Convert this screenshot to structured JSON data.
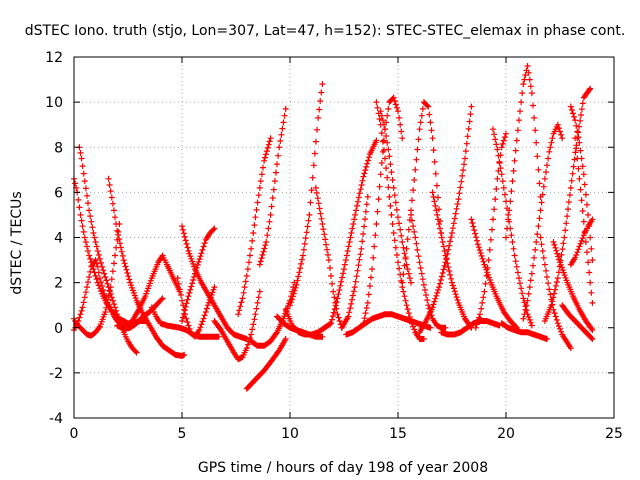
{
  "chart_data": {
    "type": "scatter",
    "title": "dSTEC Iono. truth (stjo, Lon=307, Lat=47, h=152): STEC-STEC_elemax in phase cont.",
    "xlabel": "GPS time / hours of day 198 of year 2008",
    "ylabel": "dSTEC  / TECUs",
    "xlim": [
      0,
      25
    ],
    "ylim": [
      -4,
      12
    ],
    "x_ticks": [
      0,
      5,
      10,
      15,
      20,
      25
    ],
    "y_ticks": [
      -4,
      -2,
      0,
      2,
      4,
      6,
      8,
      10,
      12
    ],
    "grid": true,
    "marker": "+",
    "color": "#ff0000",
    "arcs": [
      {
        "x": [
          0.0,
          0.1,
          0.25,
          0.4,
          0.6,
          0.8,
          1.0,
          1.2,
          1.45,
          1.7,
          1.9,
          2.1
        ],
        "y": [
          0.4,
          0.2,
          0.05,
          -0.1,
          -0.3,
          -0.35,
          -0.2,
          0.05,
          0.7,
          1.8,
          3.2,
          4.6
        ]
      },
      {
        "x": [
          0.0,
          0.15,
          0.3,
          0.5,
          0.7,
          0.9,
          1.1,
          1.3,
          1.5,
          1.7,
          1.9,
          2.1,
          2.3,
          2.5,
          2.7,
          2.9,
          3.1,
          3.3
        ],
        "y": [
          6.6,
          6.0,
          5.0,
          4.0,
          3.2,
          2.6,
          2.0,
          1.5,
          1.1,
          0.8,
          0.6,
          0.4,
          0.3,
          0.2,
          0.2,
          0.25,
          0.3,
          0.3
        ]
      },
      {
        "x": [
          0.25,
          0.35,
          0.5,
          0.7,
          0.9,
          1.1,
          1.3,
          1.5,
          1.7,
          1.9,
          2.1,
          2.3,
          2.5,
          2.7,
          2.9
        ],
        "y": [
          8.0,
          7.5,
          6.5,
          5.2,
          4.2,
          3.4,
          2.7,
          2.1,
          1.5,
          0.9,
          0.3,
          -0.2,
          -0.6,
          -0.9,
          -1.1
        ]
      },
      {
        "x": [
          0.0,
          0.2,
          0.4,
          0.6,
          0.8,
          1.0,
          1.1,
          1.2,
          1.4,
          1.6,
          1.8,
          2.0,
          2.2,
          2.4
        ],
        "y": [
          -0.1,
          0.3,
          0.9,
          1.8,
          2.7,
          3.0,
          2.7,
          2.2,
          1.5,
          1.0,
          0.6,
          0.3,
          0.1,
          0.0
        ]
      },
      {
        "x": [
          1.6,
          1.8,
          2.0,
          2.3,
          2.6,
          2.9,
          3.2,
          3.5,
          3.8,
          4.1,
          4.4,
          4.7,
          5.0,
          5.1
        ],
        "y": [
          6.6,
          5.5,
          4.3,
          3.0,
          2.0,
          1.2,
          0.6,
          0.1,
          -0.4,
          -0.8,
          -1.0,
          -1.2,
          -1.25,
          -1.2
        ]
      },
      {
        "x": [
          2.0,
          2.3,
          2.6,
          2.9,
          3.2,
          3.5,
          3.8,
          4.0,
          4.1
        ],
        "y": [
          0.1,
          -0.05,
          0.0,
          0.2,
          0.5,
          0.7,
          1.0,
          1.2,
          1.3
        ]
      },
      {
        "x": [
          2.4,
          2.7,
          3.0,
          3.3,
          3.6,
          3.9,
          4.1,
          4.3,
          4.6,
          4.9
        ],
        "y": [
          0.0,
          0.3,
          0.8,
          1.4,
          2.2,
          2.9,
          3.2,
          2.8,
          2.2,
          1.6
        ]
      },
      {
        "x": [
          3.6,
          3.8,
          4.0,
          4.3,
          4.6,
          4.9,
          5.2,
          5.5,
          5.8,
          6.1,
          6.4,
          6.7
        ],
        "y": [
          0.9,
          0.5,
          0.2,
          0.1,
          0.05,
          0.0,
          -0.1,
          -0.3,
          -0.4,
          -0.4,
          -0.4,
          -0.4
        ]
      },
      {
        "x": [
          4.8,
          5.0,
          5.2,
          5.4,
          5.6,
          5.8,
          6.0,
          6.2,
          6.5
        ],
        "y": [
          2.2,
          1.2,
          0.4,
          -0.2,
          -0.4,
          -0.1,
          0.4,
          1.0,
          1.8
        ]
      },
      {
        "x": [
          5.0,
          5.3,
          5.6,
          5.9,
          6.2,
          6.5,
          6.8,
          7.1,
          7.4,
          7.7,
          8.0
        ],
        "y": [
          4.5,
          3.4,
          2.6,
          2.0,
          1.5,
          1.0,
          0.5,
          0.0,
          -0.3,
          -0.4,
          -0.5
        ]
      },
      {
        "x": [
          5.0,
          5.3,
          5.6,
          5.9,
          6.1,
          6.3,
          6.5
        ],
        "y": [
          0.3,
          1.4,
          2.4,
          3.3,
          3.9,
          4.2,
          4.4
        ]
      },
      {
        "x": [
          6.5,
          6.8,
          7.1,
          7.4,
          7.6,
          7.8,
          8.0,
          8.2,
          8.4,
          8.6
        ],
        "y": [
          0.3,
          -0.1,
          -0.6,
          -1.1,
          -1.4,
          -1.3,
          -0.9,
          -0.3,
          0.6,
          1.6
        ]
      },
      {
        "x": [
          7.6,
          7.8,
          8.0,
          8.2,
          8.4,
          8.6,
          8.8,
          9.1
        ],
        "y": [
          0.6,
          1.3,
          2.3,
          3.5,
          4.9,
          6.2,
          7.4,
          8.4
        ]
      },
      {
        "x": [
          8.0,
          8.4,
          8.8,
          9.2,
          9.5,
          9.8
        ],
        "y": [
          -2.7,
          -2.3,
          -1.9,
          -1.4,
          -1.0,
          -0.5
        ]
      },
      {
        "x": [
          8.2,
          8.5,
          8.8,
          9.1,
          9.4,
          9.7,
          10.0,
          10.2
        ],
        "y": [
          -0.6,
          -0.8,
          -0.8,
          -0.6,
          -0.2,
          0.4,
          1.2,
          2.0
        ]
      },
      {
        "x": [
          8.6,
          8.9,
          9.1,
          9.3,
          9.5,
          9.7,
          9.8
        ],
        "y": [
          2.8,
          3.8,
          5.0,
          6.5,
          8.0,
          9.1,
          9.7
        ]
      },
      {
        "x": [
          9.4,
          9.7,
          10.0,
          10.3,
          10.6,
          10.9,
          11.2,
          11.5
        ],
        "y": [
          0.5,
          0.2,
          0.0,
          -0.1,
          -0.2,
          -0.3,
          -0.4,
          -0.4
        ]
      },
      {
        "x": [
          9.8,
          10.1,
          10.4,
          10.7,
          11.0,
          11.3,
          11.6,
          11.9
        ],
        "y": [
          0.8,
          0.1,
          -0.2,
          -0.3,
          -0.3,
          -0.2,
          0.0,
          0.2
        ]
      },
      {
        "x": [
          10.0,
          10.3,
          10.6,
          10.9,
          11.1,
          11.3,
          11.5
        ],
        "y": [
          1.0,
          1.9,
          3.2,
          5.0,
          7.2,
          9.3,
          10.8
        ]
      },
      {
        "x": [
          11.2,
          11.5,
          11.8,
          12.0,
          12.2,
          12.4
        ],
        "y": [
          6.2,
          4.6,
          3.0,
          1.6,
          0.6,
          0.0
        ]
      },
      {
        "x": [
          11.9,
          12.2,
          12.5,
          12.8,
          13.1,
          13.4,
          13.7,
          14.0
        ],
        "y": [
          0.2,
          1.3,
          2.6,
          4.0,
          5.4,
          6.7,
          7.7,
          8.3
        ]
      },
      {
        "x": [
          12.4,
          12.7,
          13.0,
          13.3,
          13.6
        ],
        "y": [
          0.0,
          0.5,
          1.8,
          3.5,
          5.8
        ]
      },
      {
        "x": [
          12.6,
          12.9,
          13.2,
          13.5,
          13.8,
          14.1,
          14.4,
          14.7,
          15.0,
          15.3,
          15.6,
          15.9,
          16.2,
          16.5
        ],
        "y": [
          -0.3,
          -0.2,
          0.0,
          0.2,
          0.4,
          0.5,
          0.6,
          0.6,
          0.5,
          0.4,
          0.3,
          0.2,
          0.1,
          0.0
        ]
      },
      {
        "x": [
          13.4,
          13.6,
          13.8,
          14.0,
          14.2,
          14.4,
          14.6,
          14.8,
          15.0,
          15.2
        ],
        "y": [
          0.2,
          1.1,
          2.6,
          4.6,
          6.8,
          8.8,
          10.0,
          10.2,
          9.6,
          8.4
        ]
      },
      {
        "x": [
          14.0,
          14.2,
          14.4,
          14.6,
          14.8,
          15.0,
          15.2,
          15.4,
          15.6,
          15.8,
          16.0,
          16.2
        ],
        "y": [
          10.0,
          9.0,
          7.5,
          5.8,
          4.2,
          2.9,
          1.8,
          1.0,
          0.3,
          -0.2,
          -0.5,
          -0.5
        ]
      },
      {
        "x": [
          14.2,
          14.4,
          14.6,
          14.8,
          15.0,
          15.2,
          15.4,
          15.6
        ],
        "y": [
          9.6,
          8.8,
          7.6,
          6.2,
          4.9,
          3.8,
          2.8,
          2.0
        ]
      },
      {
        "x": [
          15.2,
          15.4,
          15.6,
          15.8,
          16.0,
          16.2,
          16.4,
          16.6,
          16.8,
          17.0
        ],
        "y": [
          2.0,
          3.5,
          5.2,
          7.0,
          8.8,
          10.0,
          9.8,
          8.4,
          6.3,
          4.2
        ]
      },
      {
        "x": [
          15.6,
          15.8,
          16.0,
          16.2,
          16.4,
          16.6,
          16.8,
          17.0,
          17.2
        ],
        "y": [
          5.0,
          4.0,
          2.9,
          1.9,
          1.0,
          0.4,
          0.1,
          0.0,
          0.0
        ]
      },
      {
        "x": [
          16.0,
          16.3,
          16.6,
          16.9,
          17.2,
          17.5,
          17.8,
          18.1,
          18.4
        ],
        "y": [
          -0.2,
          0.3,
          0.9,
          1.8,
          2.9,
          4.2,
          5.7,
          7.5,
          9.8
        ]
      },
      {
        "x": [
          16.6,
          16.9,
          17.2,
          17.5,
          17.8,
          18.1,
          18.4
        ],
        "y": [
          6.0,
          4.6,
          3.2,
          2.0,
          1.1,
          0.4,
          0.0
        ]
      },
      {
        "x": [
          17.0,
          17.3,
          17.6,
          17.9,
          18.2,
          18.5,
          18.8,
          19.1,
          19.4,
          19.7
        ],
        "y": [
          -0.2,
          -0.3,
          -0.3,
          -0.2,
          0.0,
          0.2,
          0.3,
          0.3,
          0.2,
          0.1
        ]
      },
      {
        "x": [
          18.4,
          18.7,
          19.0,
          19.3,
          19.6,
          19.9,
          20.2,
          20.5
        ],
        "y": [
          4.8,
          3.7,
          2.8,
          2.0,
          1.3,
          0.7,
          0.3,
          0.0
        ]
      },
      {
        "x": [
          18.6,
          18.8,
          19.0,
          19.2,
          19.4,
          19.6,
          19.8,
          20.0
        ],
        "y": [
          0.0,
          0.6,
          1.6,
          3.0,
          4.8,
          6.6,
          8.0,
          8.6
        ]
      },
      {
        "x": [
          19.4,
          19.6,
          19.8,
          20.0,
          20.2,
          20.4,
          20.6,
          20.8,
          21.0,
          21.2
        ],
        "y": [
          8.8,
          7.9,
          6.8,
          5.6,
          4.4,
          3.2,
          2.2,
          1.3,
          0.6,
          0.1
        ]
      },
      {
        "x": [
          19.8,
          20.1,
          20.4,
          20.7,
          21.0,
          21.3,
          21.6,
          21.9
        ],
        "y": [
          0.2,
          0.0,
          -0.1,
          -0.2,
          -0.2,
          -0.3,
          -0.4,
          -0.5
        ]
      },
      {
        "x": [
          20.0,
          20.2,
          20.4,
          20.6,
          20.8,
          21.0,
          21.2,
          21.4,
          21.6
        ],
        "y": [
          4.0,
          5.6,
          7.4,
          9.2,
          10.8,
          11.6,
          10.4,
          8.2,
          5.8
        ]
      },
      {
        "x": [
          20.8,
          21.0,
          21.2,
          21.4,
          21.6,
          21.8,
          22.0,
          22.2,
          22.4,
          22.6
        ],
        "y": [
          0.4,
          1.2,
          2.4,
          3.8,
          5.2,
          6.6,
          7.8,
          8.6,
          9.0,
          8.4
        ]
      },
      {
        "x": [
          21.6,
          21.8,
          22.0,
          22.2,
          22.4,
          22.6,
          22.8,
          23.0
        ],
        "y": [
          4.0,
          2.8,
          1.7,
          0.8,
          0.2,
          -0.3,
          -0.6,
          -0.9
        ]
      },
      {
        "x": [
          21.8,
          22.1,
          22.4,
          22.7,
          23.0,
          23.3,
          23.6,
          23.9
        ],
        "y": [
          0.3,
          1.0,
          2.2,
          4.0,
          6.2,
          8.4,
          10.2,
          10.6
        ]
      },
      {
        "x": [
          22.2,
          22.5,
          22.8,
          23.1,
          23.4,
          23.7,
          24.0
        ],
        "y": [
          3.8,
          2.9,
          2.1,
          1.4,
          0.8,
          0.3,
          -0.1
        ]
      },
      {
        "x": [
          23.0,
          23.2,
          23.4,
          23.6,
          23.8,
          24.0
        ],
        "y": [
          9.8,
          9.2,
          8.2,
          6.8,
          5.0,
          3.0
        ]
      },
      {
        "x": [
          23.2,
          23.4,
          23.6,
          23.8,
          24.0
        ],
        "y": [
          8.4,
          6.6,
          4.7,
          2.9,
          1.1
        ]
      },
      {
        "x": [
          23.0,
          23.2,
          23.4,
          23.6,
          23.8,
          24.0
        ],
        "y": [
          2.8,
          3.1,
          3.6,
          4.1,
          4.5,
          4.8
        ]
      },
      {
        "x": [
          22.6,
          22.9,
          23.2,
          23.5,
          23.8,
          24.0
        ],
        "y": [
          1.0,
          0.6,
          0.3,
          0.0,
          -0.3,
          -0.5
        ]
      }
    ]
  }
}
